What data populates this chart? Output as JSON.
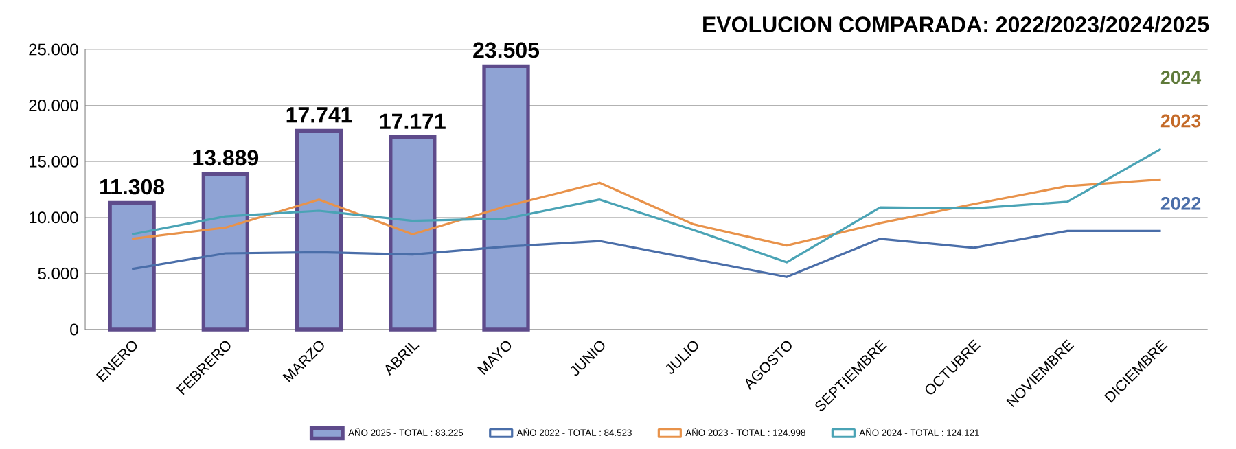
{
  "chart_data": {
    "type": "line",
    "title": "EVOLUCION COMPARADA: 2022/2023/2024/2025",
    "categories": [
      "ENERO",
      "FEBRERO",
      "MARZO",
      "ABRIL",
      "MAYO",
      "JUNIO",
      "JULIO",
      "AGOSTO",
      "SEPTIEMBRE",
      "OCTUBRE",
      "NOVIEMBRE",
      "DICIEMBRE"
    ],
    "series": [
      {
        "name": "AÑO 2025 - TOTAL : 83.225",
        "type": "bar",
        "color": "#8fa3d4",
        "values": [
          11308,
          13889,
          17741,
          17171,
          23505,
          null,
          null,
          null,
          null,
          null,
          null,
          null
        ],
        "value_labels": [
          "11.308",
          "13.889",
          "17.741",
          "17.171",
          "23.505",
          null,
          null,
          null,
          null,
          null,
          null,
          null
        ]
      },
      {
        "name": "AÑO 2022 - TOTAL : 84.523",
        "color": "#4a6ea9",
        "values": [
          5400,
          6800,
          6900,
          6700,
          7400,
          7900,
          6300,
          4700,
          8100,
          7300,
          8800,
          8800
        ]
      },
      {
        "name": "AÑO 2023 - TOTAL : 124.998",
        "color": "#e8924a",
        "values": [
          8100,
          9100,
          11600,
          8500,
          11000,
          13100,
          9400,
          7500,
          9500,
          11200,
          12800,
          13400
        ]
      },
      {
        "name": "AÑO 2024 - TOTAL : 124.121",
        "color": "#4aa3b5",
        "values": [
          8500,
          10100,
          10600,
          9700,
          9900,
          11600,
          8900,
          6000,
          10900,
          10800,
          11400,
          16100
        ]
      }
    ],
    "ylim": [
      0,
      25000
    ],
    "yticks": [
      0,
      {
        "value": 5000,
        "label": "5.000"
      },
      {
        "value": 10000,
        "label": "10.000"
      },
      {
        "value": 15000,
        "label": "15.000"
      },
      {
        "value": 20000,
        "label": "20.000"
      },
      {
        "value": 25000,
        "label": "25.000"
      }
    ],
    "grid": "y",
    "legend": "bottom",
    "annotations": [
      "2024",
      "2023",
      "2022"
    ]
  }
}
